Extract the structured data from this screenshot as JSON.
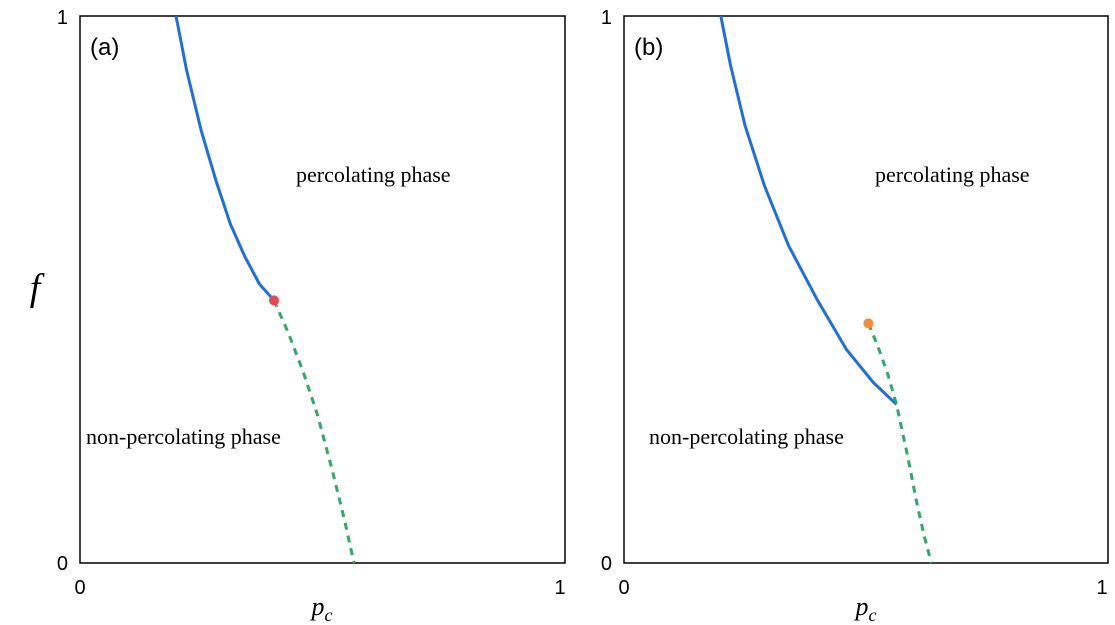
{
  "chart_data": [
    {
      "type": "line",
      "panel_label": "(a)",
      "xlabel": "p_c",
      "ylabel": "f",
      "xlim": [
        0,
        1
      ],
      "ylim": [
        0,
        1
      ],
      "x_tick_labels": [
        "0",
        "1"
      ],
      "y_tick_labels": [
        "0",
        "1"
      ],
      "grid": false,
      "annotations": [
        "percolating phase",
        "non-percolating phase"
      ],
      "series": [
        {
          "style": "solid",
          "color": "#1f6fdb",
          "x": [
            0.198,
            0.22,
            0.25,
            0.28,
            0.31,
            0.34,
            0.37,
            0.4
          ],
          "y": [
            1.0,
            0.9,
            0.79,
            0.7,
            0.62,
            0.56,
            0.51,
            0.48
          ]
        },
        {
          "style": "dashed",
          "color": "#2ea86b",
          "x": [
            0.4,
            0.43,
            0.46,
            0.49,
            0.52,
            0.545,
            0.565
          ],
          "y": [
            0.48,
            0.42,
            0.35,
            0.27,
            0.17,
            0.08,
            0.0
          ]
        }
      ],
      "point": {
        "x": 0.4,
        "y": 0.48,
        "color": "#e5484d"
      }
    },
    {
      "type": "line",
      "panel_label": "(b)",
      "xlabel": "p_c",
      "ylabel": "",
      "xlim": [
        0,
        1
      ],
      "ylim": [
        0,
        1
      ],
      "x_tick_labels": [
        "0",
        "1"
      ],
      "y_tick_labels": [
        "0",
        "1"
      ],
      "grid": false,
      "annotations": [
        "percolating phase",
        "non-percolating phase"
      ],
      "series": [
        {
          "style": "solid",
          "color": "#1f6fdb",
          "x": [
            0.2,
            0.22,
            0.25,
            0.29,
            0.34,
            0.4,
            0.46,
            0.515,
            0.563
          ],
          "y": [
            1.0,
            0.91,
            0.8,
            0.69,
            0.58,
            0.48,
            0.39,
            0.33,
            0.29
          ]
        },
        {
          "style": "dashed",
          "color": "#2ea86b",
          "x": [
            0.505,
            0.525,
            0.545,
            0.563,
            0.585,
            0.605,
            0.62,
            0.635
          ],
          "y": [
            0.438,
            0.395,
            0.345,
            0.29,
            0.2,
            0.11,
            0.05,
            0.0
          ]
        }
      ],
      "point": {
        "x": 0.505,
        "y": 0.438,
        "color": "#f28b3c"
      }
    }
  ]
}
